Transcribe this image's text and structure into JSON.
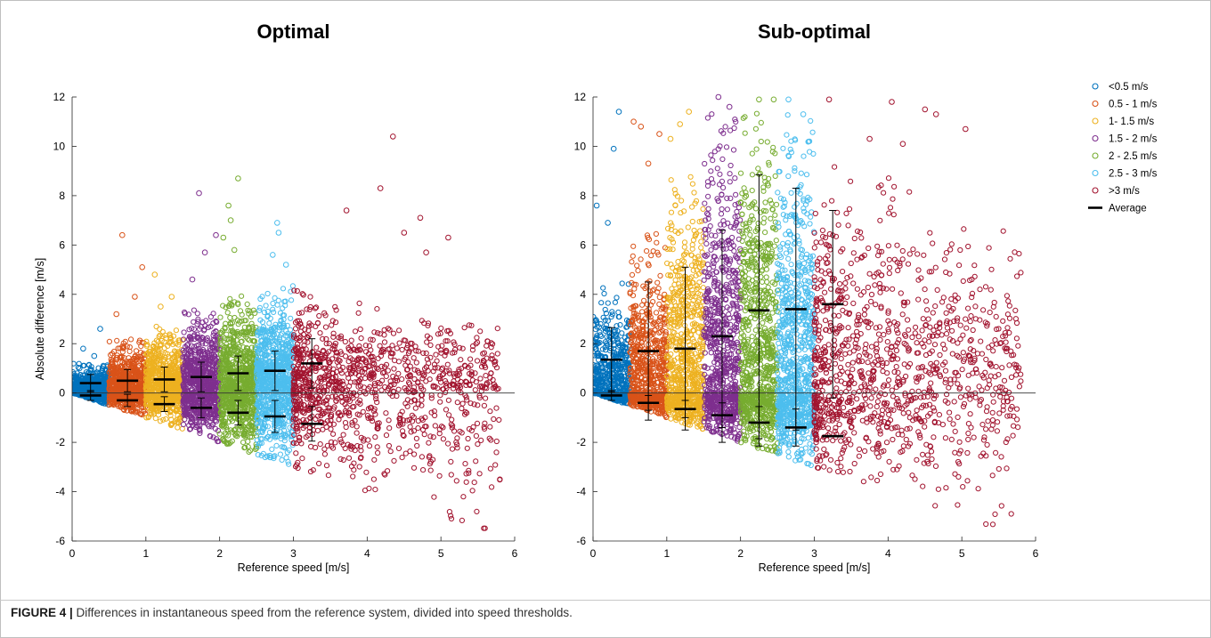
{
  "caption": {
    "label": "FIGURE 4 |",
    "text": " Differences in instantaneous speed from the reference system, divided into speed thresholds."
  },
  "legend": {
    "items": [
      {
        "label": "<0.5 m/s",
        "color": "#0072BD"
      },
      {
        "label": "0.5 - 1 m/s",
        "color": "#D95319"
      },
      {
        "label": "1- 1.5 m/s",
        "color": "#EDB120"
      },
      {
        "label": "1.5 - 2 m/s",
        "color": "#7E2F8E"
      },
      {
        "label": "2 - 2.5 m/s",
        "color": "#77AC30"
      },
      {
        "label": "2.5 - 3 m/s",
        "color": "#4DBEEE"
      },
      {
        "label": ">3 m/s",
        "color": "#A2142F"
      }
    ],
    "average_label": "Average",
    "placement": "right"
  },
  "chart_data": [
    {
      "type": "scatter",
      "title": "Optimal",
      "xlabel": "Reference speed [m/s]",
      "ylabel": "Absolute difference [m/s]",
      "xlim": [
        0,
        6
      ],
      "ylim": [
        -6,
        12
      ],
      "xticks": [
        0,
        1,
        2,
        3,
        4,
        5,
        6
      ],
      "yticks": [
        -6,
        -4,
        -2,
        0,
        2,
        4,
        6,
        8,
        10,
        12
      ],
      "grid": false,
      "zero_line": true,
      "series": [
        {
          "name": "<0.5 m/s",
          "x_range": [
            0,
            0.5
          ],
          "typical_max": 1.2,
          "outliers": [
            [
              0.38,
              2.6
            ],
            [
              0.15,
              1.8
            ],
            [
              0.3,
              1.5
            ]
          ]
        },
        {
          "name": "0.5 - 1 m/s",
          "x_range": [
            0.5,
            1.0
          ],
          "typical_max": 2.2,
          "outliers": [
            [
              0.68,
              6.4
            ],
            [
              0.95,
              5.1
            ],
            [
              0.85,
              3.9
            ],
            [
              0.6,
              3.2
            ]
          ]
        },
        {
          "name": "1- 1.5 m/s",
          "x_range": [
            1.0,
            1.5
          ],
          "typical_max": 2.8,
          "outliers": [
            [
              1.12,
              4.8
            ],
            [
              1.35,
              3.9
            ],
            [
              1.2,
              3.5
            ]
          ]
        },
        {
          "name": "1.5 - 2 m/s",
          "x_range": [
            1.5,
            2.0
          ],
          "typical_max": 3.4,
          "outliers": [
            [
              1.72,
              8.1
            ],
            [
              1.95,
              6.4
            ],
            [
              1.8,
              5.7
            ],
            [
              1.63,
              4.6
            ]
          ]
        },
        {
          "name": "2 - 2.5 m/s",
          "x_range": [
            2.0,
            2.5
          ],
          "typical_max": 4.0,
          "outliers": [
            [
              2.25,
              8.7
            ],
            [
              2.12,
              7.6
            ],
            [
              2.15,
              7.0
            ],
            [
              2.05,
              6.3
            ],
            [
              2.2,
              5.8
            ]
          ]
        },
        {
          "name": "2.5 - 3 m/s",
          "x_range": [
            2.5,
            3.0
          ],
          "typical_max": 4.4,
          "outliers": [
            [
              2.78,
              6.9
            ],
            [
              2.8,
              6.5
            ],
            [
              2.72,
              5.6
            ],
            [
              2.9,
              5.2
            ]
          ]
        },
        {
          "name": ">3 m/s",
          "x_range": [
            3.0,
            5.8
          ],
          "typical_max": 4.5,
          "outliers": [
            [
              4.35,
              10.4
            ],
            [
              4.18,
              8.3
            ],
            [
              3.72,
              7.4
            ],
            [
              4.72,
              7.1
            ],
            [
              4.5,
              6.5
            ],
            [
              5.1,
              6.3
            ],
            [
              4.8,
              5.7
            ]
          ]
        }
      ],
      "averages": [
        {
          "x": 0.25,
          "pos_mean": 0.4,
          "pos_sd": 0.35,
          "neg_mean": -0.1,
          "neg_sd": 0.2
        },
        {
          "x": 0.75,
          "pos_mean": 0.5,
          "pos_sd": 0.45,
          "neg_mean": -0.3,
          "neg_sd": 0.25
        },
        {
          "x": 1.25,
          "pos_mean": 0.55,
          "pos_sd": 0.5,
          "neg_mean": -0.45,
          "neg_sd": 0.3
        },
        {
          "x": 1.75,
          "pos_mean": 0.65,
          "pos_sd": 0.6,
          "neg_mean": -0.6,
          "neg_sd": 0.4
        },
        {
          "x": 2.25,
          "pos_mean": 0.8,
          "pos_sd": 0.7,
          "neg_mean": -0.8,
          "neg_sd": 0.5
        },
        {
          "x": 2.75,
          "pos_mean": 0.9,
          "pos_sd": 0.8,
          "neg_mean": -0.95,
          "neg_sd": 0.65
        },
        {
          "x": 3.25,
          "pos_mean": 1.2,
          "pos_sd": 1.0,
          "neg_mean": -1.25,
          "neg_sd": 0.7
        }
      ]
    },
    {
      "type": "scatter",
      "title": "Sub-optimal",
      "xlabel": "Reference speed [m/s]",
      "ylabel": "",
      "xlim": [
        0,
        6
      ],
      "ylim": [
        -6,
        12
      ],
      "xticks": [
        0,
        1,
        2,
        3,
        4,
        5,
        6
      ],
      "yticks": [
        -6,
        -4,
        -2,
        0,
        2,
        4,
        6,
        8,
        10,
        12
      ],
      "grid": false,
      "zero_line": true,
      "series": [
        {
          "name": "<0.5 m/s",
          "x_range": [
            0,
            0.5
          ],
          "typical_max": 4.5,
          "outliers": [
            [
              0.35,
              11.4
            ],
            [
              0.28,
              9.9
            ],
            [
              0.05,
              7.6
            ],
            [
              0.2,
              6.9
            ]
          ]
        },
        {
          "name": "0.5 - 1 m/s",
          "x_range": [
            0.5,
            1.0
          ],
          "typical_max": 6.5,
          "outliers": [
            [
              0.55,
              11.0
            ],
            [
              0.65,
              10.8
            ],
            [
              0.9,
              10.5
            ],
            [
              0.75,
              9.3
            ]
          ]
        },
        {
          "name": "1- 1.5 m/s",
          "x_range": [
            1.0,
            1.5
          ],
          "typical_max": 9.0,
          "outliers": [
            [
              1.3,
              11.4
            ],
            [
              1.18,
              10.9
            ],
            [
              1.05,
              10.3
            ]
          ]
        },
        {
          "name": "1.5 - 2 m/s",
          "x_range": [
            1.5,
            2.0
          ],
          "typical_max": 11.5,
          "outliers": [
            [
              1.7,
              12.0
            ],
            [
              1.85,
              11.6
            ]
          ]
        },
        {
          "name": "2 - 2.5 m/s",
          "x_range": [
            2.0,
            2.5
          ],
          "typical_max": 11.9,
          "outliers": [
            [
              2.25,
              11.9
            ],
            [
              2.45,
              11.9
            ]
          ]
        },
        {
          "name": "2.5 - 3 m/s",
          "x_range": [
            2.5,
            3.0
          ],
          "typical_max": 11.5,
          "outliers": [
            [
              2.65,
              11.9
            ],
            [
              2.85,
              11.3
            ]
          ]
        },
        {
          "name": ">3 m/s",
          "x_range": [
            3.0,
            5.8
          ],
          "typical_max": 10.0,
          "outliers": [
            [
              3.2,
              11.9
            ],
            [
              4.05,
              11.8
            ],
            [
              4.5,
              11.5
            ],
            [
              4.65,
              11.3
            ],
            [
              5.05,
              10.7
            ],
            [
              3.75,
              10.3
            ],
            [
              4.2,
              10.1
            ]
          ]
        }
      ],
      "averages": [
        {
          "x": 0.25,
          "pos_mean": 1.35,
          "pos_sd": 1.3,
          "neg_mean": -0.1,
          "neg_sd": 0.2
        },
        {
          "x": 0.75,
          "pos_mean": 1.7,
          "pos_sd": 2.8,
          "neg_mean": -0.4,
          "neg_sd": 0.3
        },
        {
          "x": 1.25,
          "pos_mean": 1.8,
          "pos_sd": 3.3,
          "neg_mean": -0.65,
          "neg_sd": 0.35
        },
        {
          "x": 1.75,
          "pos_mean": 2.3,
          "pos_sd": 4.3,
          "neg_mean": -0.9,
          "neg_sd": 0.5
        },
        {
          "x": 2.25,
          "pos_mean": 3.35,
          "pos_sd": 5.5,
          "neg_mean": -1.2,
          "neg_sd": 0.65
        },
        {
          "x": 2.75,
          "pos_mean": 3.4,
          "pos_sd": 4.9,
          "neg_mean": -1.4,
          "neg_sd": 0.75
        },
        {
          "x": 3.25,
          "pos_mean": 3.6,
          "pos_sd": 3.8,
          "neg_mean": -1.75,
          "neg_sd": 0.0
        }
      ]
    }
  ]
}
